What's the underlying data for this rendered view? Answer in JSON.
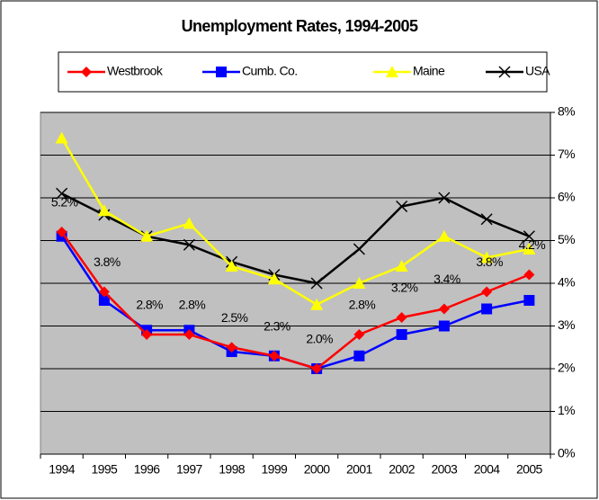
{
  "chart_data": {
    "type": "line",
    "title": "Unemployment Rates, 1994-2005",
    "categories": [
      "1994",
      "1995",
      "1996",
      "1997",
      "1998",
      "1999",
      "2000",
      "2001",
      "2002",
      "2003",
      "2004",
      "2005"
    ],
    "series": [
      {
        "name": "Westbrook",
        "color": "#ff0000",
        "marker": "diamond",
        "values": [
          5.2,
          3.8,
          2.8,
          2.8,
          2.5,
          2.3,
          2.0,
          2.8,
          3.2,
          3.4,
          3.8,
          4.2
        ],
        "value_labels": [
          "5.2%",
          "3.8%",
          "2.8%",
          "2.8%",
          "2.5%",
          "2.3%",
          "2.0%",
          "2.8%",
          "3.2%",
          "3.4%",
          "3.8%",
          "4.2%"
        ]
      },
      {
        "name": "Cumb. Co.",
        "color": "#0000ff",
        "marker": "square",
        "values": [
          5.1,
          3.6,
          2.9,
          2.9,
          2.4,
          2.3,
          2.0,
          2.3,
          2.8,
          3.0,
          3.4,
          3.6
        ]
      },
      {
        "name": "Maine",
        "color": "#ffff00",
        "marker": "triangle",
        "values": [
          7.4,
          5.7,
          5.1,
          5.4,
          4.4,
          4.1,
          3.5,
          4.0,
          4.4,
          5.1,
          4.6,
          4.8
        ]
      },
      {
        "name": "USA",
        "color": "#000000",
        "marker": "x",
        "values": [
          6.1,
          5.6,
          5.1,
          4.9,
          4.5,
          4.2,
          4.0,
          4.8,
          5.8,
          6.0,
          5.5,
          5.1
        ]
      }
    ],
    "ylim": [
      0,
      8
    ],
    "yticks": [
      {
        "value": 0,
        "label": "0%"
      },
      {
        "value": 1,
        "label": "1%"
      },
      {
        "value": 2,
        "label": "2%"
      },
      {
        "value": 3,
        "label": "3%"
      },
      {
        "value": 4,
        "label": "4%"
      },
      {
        "value": 5,
        "label": "5%"
      },
      {
        "value": 6,
        "label": "6%"
      },
      {
        "value": 7,
        "label": "7%"
      },
      {
        "value": 8,
        "label": "8%"
      }
    ],
    "grid": true,
    "legend": "top"
  }
}
